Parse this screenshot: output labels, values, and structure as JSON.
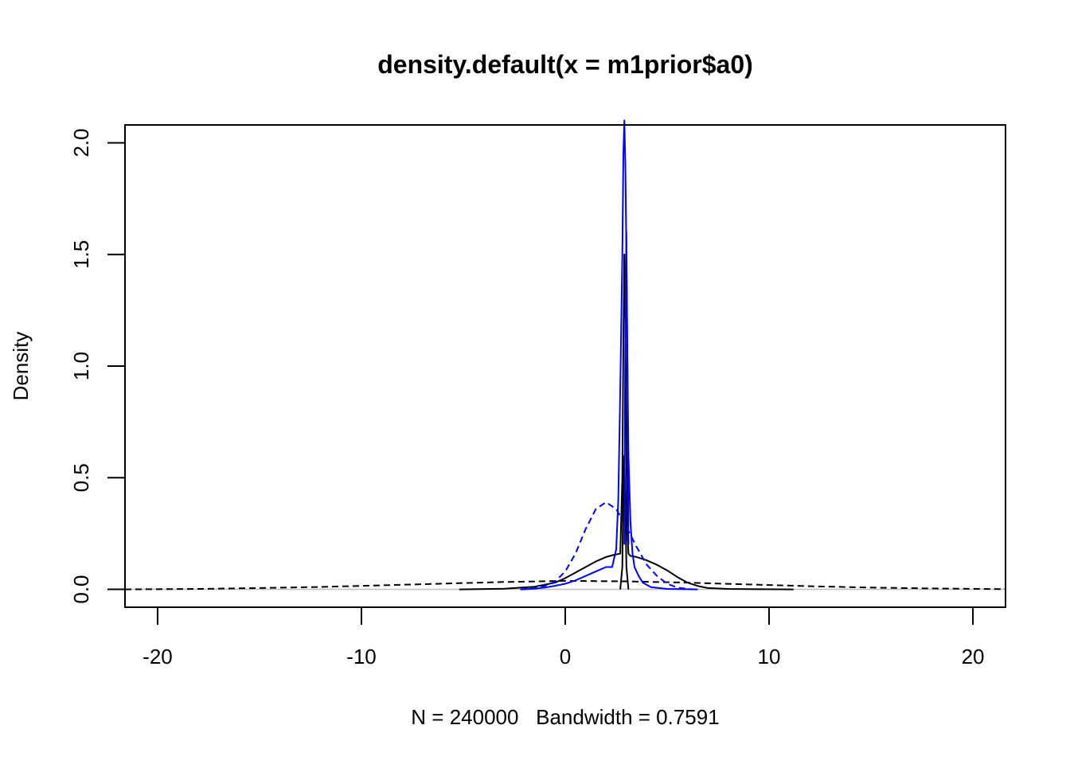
{
  "chart_data": {
    "type": "line",
    "title": "density.default(x = m1prior$a0)",
    "xlabel": "N = 240000   Bandwidth = 0.7591",
    "ylabel": "Density",
    "xlim": [
      -21.6,
      21.6
    ],
    "ylim": [
      -0.08,
      2.08
    ],
    "x_ticks": [
      "-20",
      "-10",
      "0",
      "10",
      "20"
    ],
    "y_ticks": [
      "0.0",
      "0.5",
      "1.0",
      "1.5",
      "2.0"
    ],
    "grid": false,
    "legend": "none",
    "zero_line_color": "#bebebe",
    "series": [
      {
        "color": "#000000",
        "dash": "solid",
        "x": [
          -5.2,
          -3,
          -1.5,
          -0.5,
          0,
          0.5,
          1,
          1.5,
          2,
          2.4,
          2.7,
          2.8,
          2.85,
          2.9,
          2.95,
          3.0,
          3.05,
          3.1,
          3.2,
          3.5,
          4,
          4.5,
          5,
          5.5,
          6,
          6.5,
          7,
          8,
          9,
          11.2
        ],
        "y": [
          0.0,
          0.003,
          0.012,
          0.03,
          0.05,
          0.075,
          0.1,
          0.125,
          0.145,
          0.155,
          0.16,
          0.5,
          1.1,
          1.5,
          1.2,
          0.6,
          0.25,
          0.16,
          0.15,
          0.145,
          0.13,
          0.11,
          0.085,
          0.055,
          0.03,
          0.015,
          0.006,
          0.002,
          0.001,
          0.0
        ]
      },
      {
        "color": "#000000",
        "dash": "dashed",
        "x": [
          -21.6,
          -18,
          -15,
          -12,
          -9,
          -6,
          -3,
          0,
          3,
          6,
          9,
          12,
          15,
          18,
          21.6
        ],
        "y": [
          0.0,
          0.002,
          0.006,
          0.011,
          0.018,
          0.026,
          0.033,
          0.038,
          0.036,
          0.03,
          0.022,
          0.014,
          0.008,
          0.004,
          0.001
        ]
      },
      {
        "color": "#0000ff",
        "dash": "solid",
        "x": [
          -2.2,
          -1.5,
          -1,
          -0.5,
          0,
          0.5,
          1,
          1.5,
          2,
          2.3,
          2.5,
          2.6,
          2.7,
          2.8,
          2.85,
          2.9,
          2.95,
          3.0,
          3.05,
          3.1,
          3.2,
          3.3,
          3.4,
          3.6,
          3.8,
          4.2,
          5,
          6,
          6.5
        ],
        "y": [
          0.0,
          0.003,
          0.008,
          0.016,
          0.025,
          0.04,
          0.06,
          0.08,
          0.1,
          0.1,
          0.18,
          0.4,
          0.9,
          1.5,
          1.95,
          2.1,
          1.9,
          1.5,
          1.0,
          0.6,
          0.3,
          0.16,
          0.1,
          0.06,
          0.03,
          0.01,
          0.002,
          0.0005,
          0.0
        ]
      },
      {
        "color": "#0000ff",
        "dash": "dashed",
        "x": [
          -2.2,
          -1.5,
          -1,
          -0.5,
          0,
          0.5,
          1,
          1.5,
          2,
          2.5,
          3,
          3.5,
          4,
          4.5,
          5,
          5.5,
          6,
          6.3
        ],
        "y": [
          0.0,
          0.005,
          0.015,
          0.035,
          0.08,
          0.16,
          0.27,
          0.36,
          0.39,
          0.36,
          0.28,
          0.19,
          0.11,
          0.06,
          0.025,
          0.008,
          0.002,
          0.0
        ]
      },
      {
        "color": "#000000",
        "dash": "solid",
        "x": [
          2.7,
          2.8,
          2.85,
          2.9,
          2.95,
          3.0,
          3.1
        ],
        "y": [
          0.0,
          0.1,
          0.5,
          0.6,
          0.4,
          0.1,
          0.0
        ]
      },
      {
        "color": "#0000ff",
        "dash": "solid",
        "x": [
          2.9,
          2.95,
          3.0,
          3.05,
          3.1
        ],
        "y": [
          0.2,
          1.2,
          1.6,
          1.0,
          0.2
        ]
      }
    ]
  }
}
